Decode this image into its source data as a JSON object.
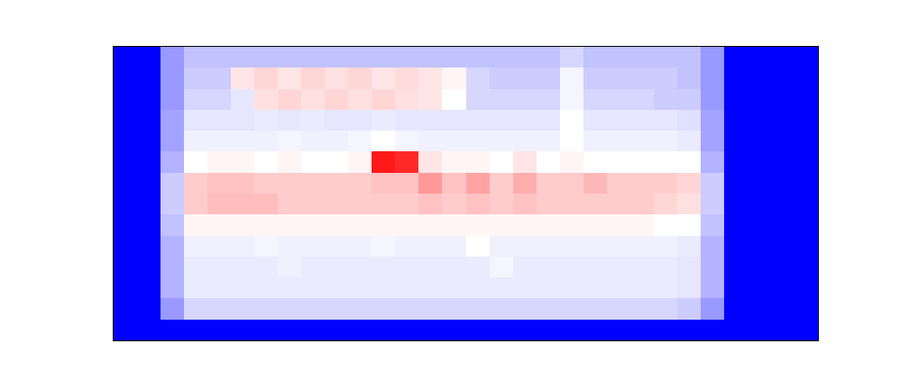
{
  "chart_data": {
    "type": "heatmap",
    "tick_labels": false,
    "color_range": [
      0,
      1
    ],
    "cells": [
      [
        0,
        0,
        0.3,
        0.38,
        0.38,
        0.38,
        0.38,
        0.38,
        0.38,
        0.38,
        0.38,
        0.38,
        0.38,
        0.38,
        0.38,
        0.38,
        0.38,
        0.38,
        0.38,
        0.42,
        0.38,
        0.38,
        0.38,
        0.38,
        0.38,
        0.3,
        0,
        0,
        0,
        0
      ],
      [
        0,
        0,
        0.3,
        0.4,
        0.4,
        0.55,
        0.58,
        0.55,
        0.58,
        0.56,
        0.58,
        0.55,
        0.57,
        0.55,
        0.52,
        0.42,
        0.4,
        0.4,
        0.4,
        0.48,
        0.4,
        0.4,
        0.4,
        0.4,
        0.38,
        0.3,
        0,
        0,
        0,
        0
      ],
      [
        0,
        0,
        0.3,
        0.42,
        0.42,
        0.45,
        0.56,
        0.58,
        0.56,
        0.58,
        0.56,
        0.58,
        0.56,
        0.55,
        0.5,
        0.42,
        0.42,
        0.42,
        0.42,
        0.48,
        0.42,
        0.42,
        0.42,
        0.4,
        0.4,
        0.3,
        0,
        0,
        0,
        0
      ],
      [
        0,
        0,
        0.32,
        0.45,
        0.45,
        0.45,
        0.46,
        0.45,
        0.46,
        0.45,
        0.45,
        0.46,
        0.45,
        0.45,
        0.45,
        0.45,
        0.45,
        0.45,
        0.45,
        0.5,
        0.45,
        0.45,
        0.45,
        0.45,
        0.44,
        0.32,
        0,
        0,
        0,
        0
      ],
      [
        0,
        0,
        0.32,
        0.47,
        0.47,
        0.47,
        0.47,
        0.48,
        0.47,
        0.47,
        0.48,
        0.5,
        0.48,
        0.47,
        0.47,
        0.47,
        0.47,
        0.47,
        0.47,
        0.5,
        0.47,
        0.47,
        0.47,
        0.47,
        0.46,
        0.32,
        0,
        0,
        0,
        0
      ],
      [
        0,
        0,
        0.35,
        0.5,
        0.52,
        0.52,
        0.5,
        0.52,
        0.5,
        0.5,
        0.52,
        0.95,
        0.92,
        0.55,
        0.52,
        0.52,
        0.5,
        0.55,
        0.5,
        0.52,
        0.5,
        0.5,
        0.5,
        0.5,
        0.5,
        0.35,
        0,
        0,
        0,
        0
      ],
      [
        0,
        0,
        0.4,
        0.6,
        0.62,
        0.62,
        0.6,
        0.6,
        0.6,
        0.6,
        0.6,
        0.62,
        0.62,
        0.7,
        0.62,
        0.68,
        0.6,
        0.66,
        0.6,
        0.6,
        0.64,
        0.6,
        0.6,
        0.6,
        0.58,
        0.4,
        0,
        0,
        0,
        0
      ],
      [
        0,
        0,
        0.4,
        0.6,
        0.63,
        0.63,
        0.63,
        0.6,
        0.6,
        0.6,
        0.6,
        0.6,
        0.6,
        0.62,
        0.6,
        0.62,
        0.6,
        0.62,
        0.6,
        0.6,
        0.6,
        0.6,
        0.6,
        0.58,
        0.56,
        0.4,
        0,
        0,
        0,
        0
      ],
      [
        0,
        0,
        0.38,
        0.52,
        0.52,
        0.52,
        0.52,
        0.52,
        0.52,
        0.52,
        0.52,
        0.52,
        0.52,
        0.52,
        0.52,
        0.52,
        0.52,
        0.52,
        0.52,
        0.52,
        0.52,
        0.52,
        0.52,
        0.5,
        0.5,
        0.38,
        0,
        0,
        0,
        0
      ],
      [
        0,
        0,
        0.35,
        0.47,
        0.47,
        0.47,
        0.48,
        0.47,
        0.47,
        0.47,
        0.47,
        0.48,
        0.47,
        0.47,
        0.47,
        0.5,
        0.47,
        0.47,
        0.47,
        0.47,
        0.47,
        0.47,
        0.47,
        0.47,
        0.46,
        0.35,
        0,
        0,
        0,
        0
      ],
      [
        0,
        0,
        0.35,
        0.46,
        0.46,
        0.46,
        0.46,
        0.47,
        0.46,
        0.46,
        0.46,
        0.46,
        0.46,
        0.46,
        0.46,
        0.46,
        0.48,
        0.46,
        0.46,
        0.46,
        0.46,
        0.46,
        0.46,
        0.46,
        0.45,
        0.35,
        0,
        0,
        0,
        0
      ],
      [
        0,
        0,
        0.35,
        0.46,
        0.46,
        0.46,
        0.46,
        0.46,
        0.46,
        0.46,
        0.46,
        0.46,
        0.46,
        0.46,
        0.46,
        0.46,
        0.46,
        0.46,
        0.46,
        0.46,
        0.46,
        0.46,
        0.46,
        0.46,
        0.45,
        0.35,
        0,
        0,
        0,
        0
      ],
      [
        0,
        0,
        0.3,
        0.42,
        0.42,
        0.42,
        0.42,
        0.42,
        0.42,
        0.42,
        0.42,
        0.42,
        0.42,
        0.42,
        0.42,
        0.42,
        0.42,
        0.42,
        0.42,
        0.42,
        0.42,
        0.42,
        0.42,
        0.42,
        0.4,
        0.3,
        0,
        0,
        0,
        0
      ],
      [
        0,
        0,
        0,
        0,
        0,
        0,
        0,
        0,
        0,
        0,
        0,
        0,
        0,
        0,
        0,
        0,
        0,
        0,
        0,
        0,
        0,
        0,
        0,
        0,
        0,
        0,
        0,
        0,
        0,
        0
      ]
    ]
  }
}
